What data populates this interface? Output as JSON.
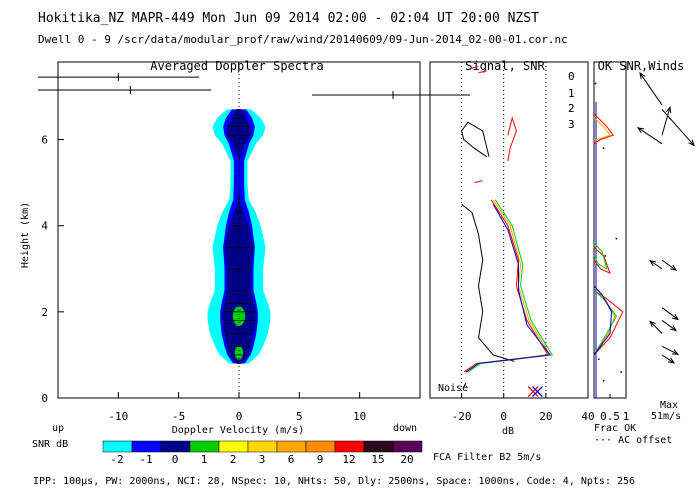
{
  "header": {
    "line1": "Hokitika_NZ  MAPR-449  Mon Jun 09 2014 02:00 - 02:04 UT 20:00 NZST",
    "line2": "Dwell  0 - 9  /scr/data/modular_prof/raw/wind/20140609/09-Jun-2014_02-00-01.cor.nc"
  },
  "footer": {
    "params": "IPP: 100μs,  PW: 2000ns,  NCI: 28,  NSpec: 10, NHts: 50,  Dly: 2500ns,  Space: 1000ns,  Code: 4,  Npts: 256",
    "filter": "FCA Filter B2  5m/s"
  },
  "colors": {
    "snr_scale": [
      "#00ffff",
      "#0000ff",
      "#00008b",
      "#00cd00",
      "#ffff00",
      "#ffd700",
      "#ffa500",
      "#ff8c00",
      "#ff0000",
      "#2a0a1e",
      "#5a005a"
    ],
    "ch0": "#ff0000",
    "ch1": "#ffa500",
    "ch2": "#00cd00",
    "ch3": "#0000cc"
  },
  "colorbar": {
    "title": "SNR dB",
    "ticks": [
      "-2",
      "-1",
      "0",
      "1",
      "2",
      "3",
      "6",
      "9",
      "12",
      "15",
      "20"
    ],
    "left_label": "up",
    "right_label": "down"
  },
  "panels": {
    "doppler": {
      "title": "Averaged Doppler Spectra",
      "ylabel": "Height (km)",
      "xlabel": "Doppler Velocity (m/s)"
    },
    "signal": {
      "title": "Signal, SNR",
      "xlabel": "dB",
      "noise_label": "Noise"
    },
    "snr": {
      "title": "OK SNR,Winds",
      "legend": [
        "0",
        "1",
        "2",
        "3"
      ],
      "frac_label": "Frac OK",
      "offset_label": "··· AC offset"
    },
    "winds": {
      "max_label": "Max",
      "max_value": "51m/s"
    }
  },
  "chart_data": [
    {
      "type": "heatmap",
      "title": "Averaged Doppler Spectra",
      "xlabel": "Doppler Velocity (m/s)",
      "ylabel": "Height (km)",
      "xlim": [
        -15,
        15
      ],
      "ylim": [
        0,
        7.8
      ],
      "xticks": [
        -10,
        -5,
        0,
        5,
        10
      ],
      "yticks": [
        0,
        2,
        4,
        6
      ],
      "zero_line_x": 0,
      "spectrum": [
        {
          "h": 0.8,
          "w": 0.8,
          "core": 0.2
        },
        {
          "h": 1.0,
          "w": 1.6,
          "core": 0.8
        },
        {
          "h": 1.2,
          "w": 2.0,
          "core": 1.0
        },
        {
          "h": 1.5,
          "w": 2.4,
          "core": 1.2
        },
        {
          "h": 1.8,
          "w": 2.6,
          "core": 1.4
        },
        {
          "h": 2.0,
          "w": 2.6,
          "core": 1.4
        },
        {
          "h": 2.2,
          "w": 2.4,
          "core": 1.2
        },
        {
          "h": 2.5,
          "w": 2.0,
          "core": 1.0
        },
        {
          "h": 3.0,
          "w": 2.0,
          "core": 1.0
        },
        {
          "h": 3.5,
          "w": 2.2,
          "core": 1.2
        },
        {
          "h": 4.0,
          "w": 1.8,
          "core": 0.8
        },
        {
          "h": 4.3,
          "w": 1.4,
          "core": 0.4
        },
        {
          "h": 4.6,
          "w": 0.8,
          "core": 0.1
        },
        {
          "h": 5.0,
          "w": 0.7,
          "core": 0.0
        },
        {
          "h": 5.5,
          "w": 0.7,
          "core": 0.0
        },
        {
          "h": 5.9,
          "w": 1.4,
          "core": 0.5
        },
        {
          "h": 6.1,
          "w": 2.0,
          "core": 1.0
        },
        {
          "h": 6.3,
          "w": 2.2,
          "core": 1.0
        },
        {
          "h": 6.5,
          "w": 1.8,
          "core": 0.6
        },
        {
          "h": 6.7,
          "w": 1.0,
          "core": 0.2
        }
      ],
      "green_peaks": [
        {
          "h": 1.9,
          "r": 0.35
        },
        {
          "h": 1.05,
          "r": 0.25
        }
      ],
      "interference": [
        {
          "h": 7.45,
          "x1": -15,
          "x2": -3.3,
          "tick": -10
        },
        {
          "h": 7.15,
          "x1": -15,
          "x2": -2.3,
          "tick": -9
        }
      ]
    },
    {
      "type": "line",
      "title": "Signal, SNR",
      "xlabel": "dB",
      "xlim": [
        -35,
        40
      ],
      "xticks": [
        -20,
        0,
        20,
        40
      ],
      "ylim": [
        0,
        7.8
      ],
      "dotted_x": [
        -20,
        0,
        20
      ],
      "noise": {
        "segments": [
          [
            [
              -7,
              5.6
            ],
            [
              -10,
              6.2
            ],
            [
              -17,
              6.4
            ],
            [
              -20,
              6.2
            ],
            [
              -19,
              6.0
            ],
            [
              -14,
              5.8
            ],
            [
              -8,
              5.6
            ]
          ],
          [
            [
              -20,
              4.5
            ],
            [
              -15,
              4.3
            ],
            [
              -12,
              3.8
            ],
            [
              -10,
              3.2
            ],
            [
              -12,
              2.6
            ],
            [
              -10,
              2.0
            ],
            [
              -12,
              1.4
            ],
            [
              -5,
              1.0
            ],
            [
              5,
              0.85
            ]
          ],
          [
            [
              -18,
              0.35
            ],
            [
              -19,
              0.25
            ]
          ]
        ]
      },
      "snr_series": [
        {
          "name": "0",
          "points": [
            [
              2,
              6.1
            ],
            [
              4,
              6.5
            ],
            [
              6,
              6.2
            ],
            [
              3,
              5.8
            ],
            [
              2,
              5.5
            ]
          ]
        },
        {
          "name": "0",
          "points": [
            [
              -6,
              4.6
            ],
            [
              2,
              4.0
            ],
            [
              7,
              3.2
            ],
            [
              6,
              2.6
            ],
            [
              11,
              1.8
            ],
            [
              21,
              1.0
            ],
            [
              -13,
              0.8
            ],
            [
              -19,
              0.6
            ]
          ]
        },
        {
          "name": "1",
          "points": [
            [
              -5,
              4.6
            ],
            [
              3,
              4.0
            ],
            [
              8,
              3.1
            ],
            [
              7,
              2.6
            ],
            [
              12,
              1.8
            ],
            [
              22,
              1.0
            ],
            [
              -12,
              0.8
            ],
            [
              -18,
              0.6
            ]
          ]
        },
        {
          "name": "2",
          "points": [
            [
              -4,
              4.6
            ],
            [
              4,
              4.0
            ],
            [
              9,
              3.1
            ],
            [
              8,
              2.6
            ],
            [
              13,
              1.8
            ],
            [
              23,
              1.0
            ],
            [
              -11,
              0.8
            ],
            [
              -17,
              0.6
            ]
          ]
        },
        {
          "name": "3",
          "points": [
            [
              -5,
              4.5
            ],
            [
              2,
              3.9
            ],
            [
              7,
              3.1
            ],
            [
              7,
              2.5
            ],
            [
              11,
              1.7
            ],
            [
              22,
              1.0
            ],
            [
              -12,
              0.8
            ],
            [
              -18,
              0.6
            ]
          ]
        }
      ],
      "outliers": [
        [
          -10,
          7.55
        ],
        [
          -14,
          7.65
        ],
        [
          -12,
          5.0
        ]
      ],
      "markers": [
        {
          "x": 14,
          "y": 0.15,
          "color": "#ff0000"
        },
        {
          "x": 16,
          "y": 0.15,
          "color": "#0000cc"
        }
      ]
    },
    {
      "type": "line",
      "title": "OK SNR,Winds",
      "xlim": [
        0,
        1
      ],
      "xticks": [
        "0.5",
        "1"
      ],
      "ylim": [
        0,
        7.8
      ],
      "frac_ok": [
        {
          "name": "0",
          "points": [
            [
              0,
              1
            ],
            [
              0.5,
              1.4
            ],
            [
              0.9,
              2
            ],
            [
              0.4,
              2.3
            ],
            [
              0,
              2.5
            ]
          ]
        },
        {
          "name": "1",
          "points": [
            [
              0,
              1
            ],
            [
              0.45,
              1.5
            ],
            [
              0.65,
              1.9
            ],
            [
              0.35,
              2.3
            ],
            [
              0,
              2.6
            ]
          ]
        },
        {
          "name": "2",
          "points": [
            [
              0,
              1
            ],
            [
              0.4,
              1.5
            ],
            [
              0.7,
              1.9
            ],
            [
              0.3,
              2.3
            ],
            [
              0,
              2.5
            ]
          ]
        },
        {
          "name": "3",
          "points": [
            [
              0,
              1
            ],
            [
              0.5,
              1.5
            ],
            [
              0.55,
              2.0
            ],
            [
              0.25,
              2.4
            ],
            [
              0,
              2.6
            ]
          ]
        },
        {
          "name": "0",
          "points": [
            [
              0,
              3.5
            ],
            [
              0.3,
              3.3
            ],
            [
              0.5,
              2.9
            ],
            [
              0.2,
              3.0
            ],
            [
              0,
              3.2
            ]
          ]
        },
        {
          "name": "2",
          "points": [
            [
              0,
              3.6
            ],
            [
              0.25,
              3.4
            ],
            [
              0.4,
              3.0
            ],
            [
              0.15,
              3.1
            ],
            [
              0,
              3.3
            ]
          ]
        },
        {
          "name": "0",
          "points": [
            [
              0,
              6.6
            ],
            [
              0.4,
              6.3
            ],
            [
              0.6,
              6.1
            ],
            [
              0.2,
              6.0
            ],
            [
              0,
              5.9
            ]
          ]
        },
        {
          "name": "1",
          "points": [
            [
              0,
              6.5
            ],
            [
              0.3,
              6.3
            ],
            [
              0.5,
              6.1
            ],
            [
              0.1,
              6.0
            ],
            [
              0,
              6.0
            ]
          ]
        }
      ],
      "offset_dots": [
        [
          0.05,
          7.3
        ],
        [
          0.3,
          5.8
        ],
        [
          0.7,
          3.7
        ],
        [
          0.35,
          3.3
        ],
        [
          0.15,
          0.9
        ],
        [
          0.85,
          0.6
        ],
        [
          0.3,
          0.4
        ]
      ],
      "wind_barbs": [
        {
          "h": 6.8,
          "dx": -0.55,
          "dy": -0.8
        },
        {
          "h": 6.7,
          "dx": 0.8,
          "dy": 0.9
        },
        {
          "h": 6.1,
          "dx": 0.2,
          "dy": -0.7
        },
        {
          "h": 5.9,
          "dx": -0.6,
          "dy": -0.4
        },
        {
          "h": 3.2,
          "dx": 0.35,
          "dy": 0.25
        },
        {
          "h": 3.0,
          "dx": -0.3,
          "dy": -0.2
        },
        {
          "h": 2.1,
          "dx": 0.4,
          "dy": 0.3
        },
        {
          "h": 1.8,
          "dx": 0.35,
          "dy": 0.25
        },
        {
          "h": 1.5,
          "dx": -0.3,
          "dy": -0.3
        },
        {
          "h": 1.2,
          "dx": 0.4,
          "dy": 0.2
        },
        {
          "h": 1.0,
          "dx": 0.3,
          "dy": 0.2
        }
      ]
    }
  ]
}
